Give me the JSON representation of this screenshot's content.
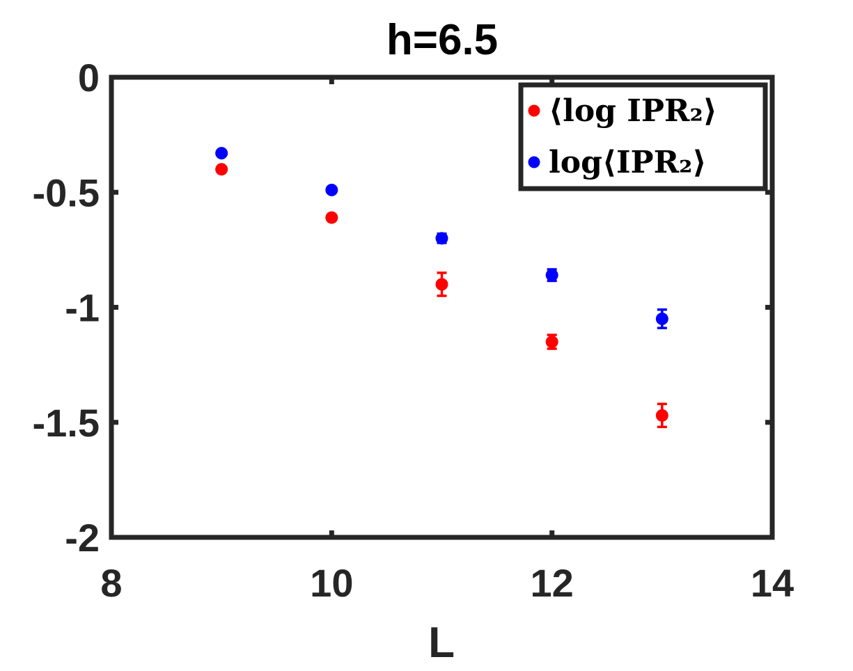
{
  "chart_data": {
    "type": "scatter",
    "title": "h=6.5",
    "xlabel": "L",
    "ylabel": "",
    "xlim": [
      8,
      14
    ],
    "ylim": [
      -2,
      0
    ],
    "xticks": [
      8,
      10,
      12,
      14
    ],
    "xtick_labels": [
      "8",
      "10",
      "12",
      "14"
    ],
    "yticks": [
      0,
      -0.5,
      -1,
      -1.5,
      -2
    ],
    "ytick_labels": [
      "0",
      "-0.5",
      "-1",
      "-1.5",
      "-2"
    ],
    "grid": false,
    "legend_position": "top-right",
    "series": [
      {
        "name": "⟨log IPR₂⟩",
        "color": "#ff0000",
        "x": [
          9,
          10,
          11,
          12,
          13
        ],
        "y": [
          -0.4,
          -0.61,
          -0.9,
          -1.15,
          -1.47
        ],
        "yerr": [
          0.01,
          0.01,
          0.05,
          0.03,
          0.05
        ]
      },
      {
        "name": "log⟨IPR₂⟩",
        "color": "#0000ff",
        "x": [
          9,
          10,
          11,
          12,
          13
        ],
        "y": [
          -0.33,
          -0.49,
          -0.7,
          -0.86,
          -1.05
        ],
        "yerr": [
          0.01,
          0.01,
          0.02,
          0.025,
          0.04
        ]
      }
    ]
  }
}
